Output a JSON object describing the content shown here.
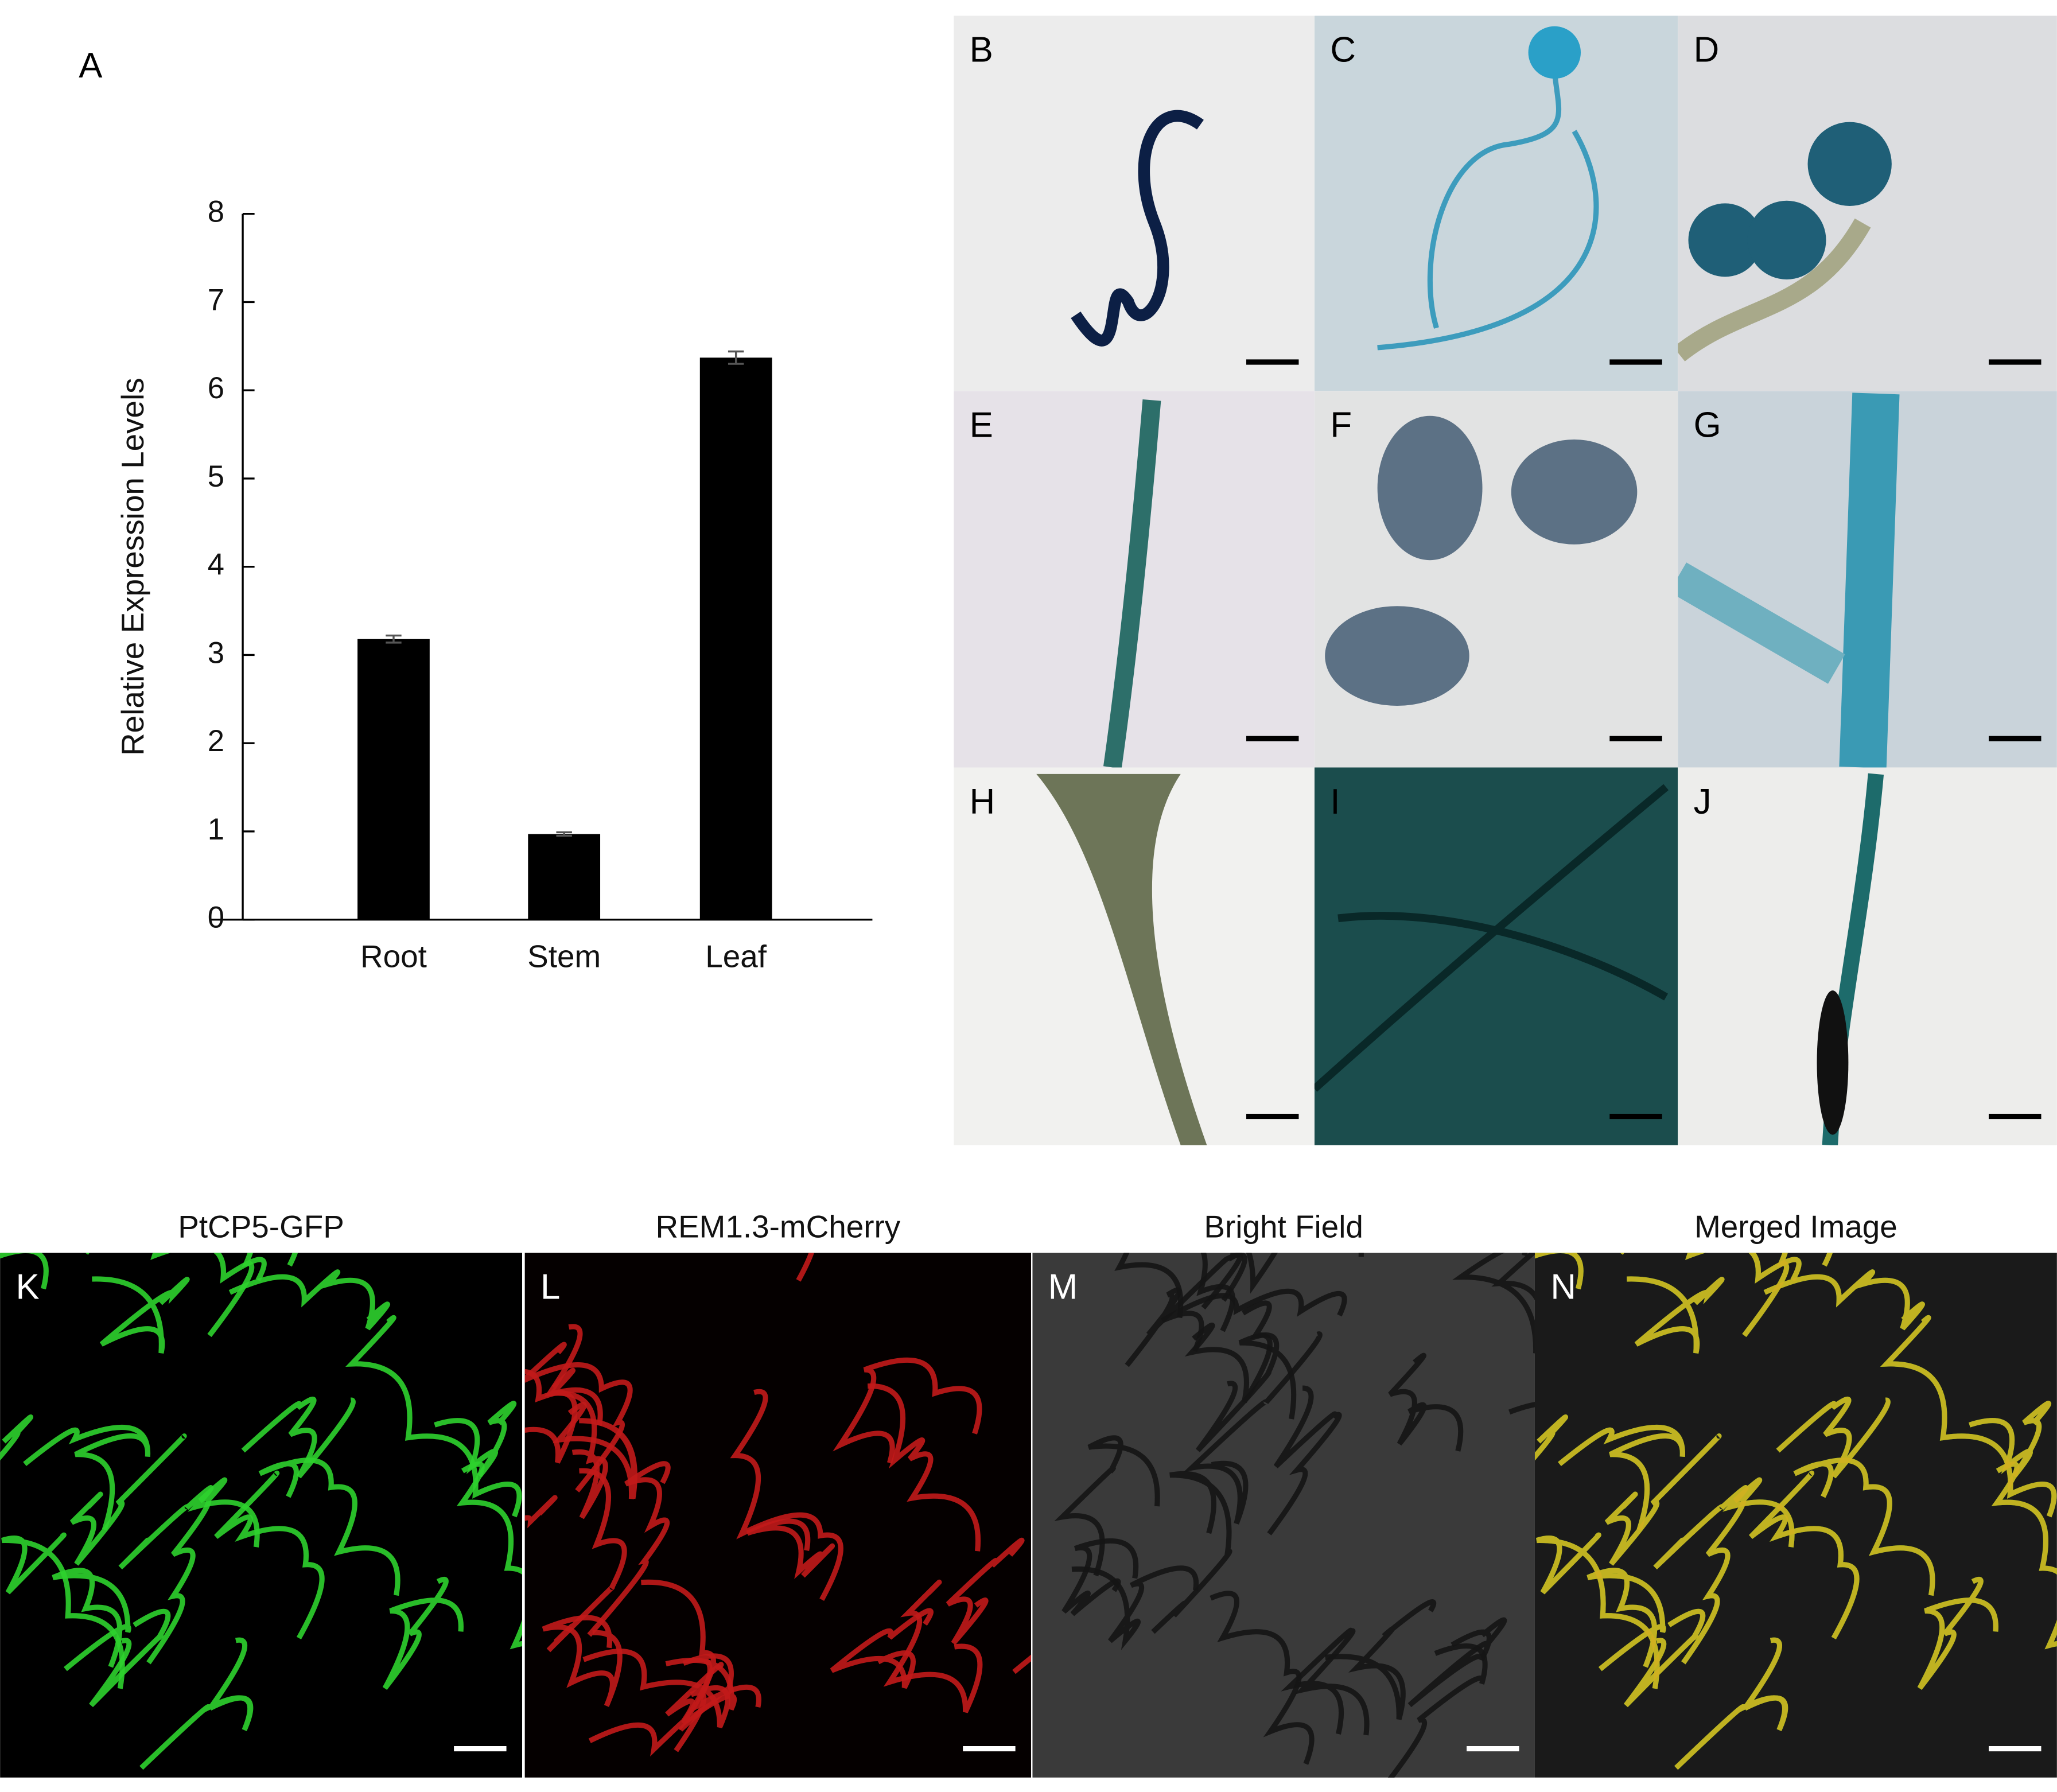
{
  "chart_data": {
    "type": "bar",
    "panel_label": "A",
    "ylabel": "Relative Expression Levels",
    "categories": [
      "Root",
      "Stem",
      "Leaf"
    ],
    "values": [
      3.18,
      0.97,
      6.37
    ],
    "errors": [
      0.04,
      0.02,
      0.07
    ],
    "color": "#000000",
    "ylim": [
      0,
      8
    ],
    "yticks": [
      0,
      1,
      2,
      3,
      4,
      5,
      6,
      7,
      8
    ]
  },
  "panels": [
    {
      "label": "B"
    },
    {
      "label": "C"
    },
    {
      "label": "D"
    },
    {
      "label": "E"
    },
    {
      "label": "F"
    },
    {
      "label": "G"
    },
    {
      "label": "H"
    },
    {
      "label": "I"
    },
    {
      "label": "J"
    },
    {
      "label": "K",
      "caption": "PtCP5-GFP"
    },
    {
      "label": "L",
      "caption": "REM1.3-mCherry"
    },
    {
      "label": "M",
      "caption": "Bright Field"
    },
    {
      "label": "N",
      "caption": "Merged Image"
    }
  ]
}
